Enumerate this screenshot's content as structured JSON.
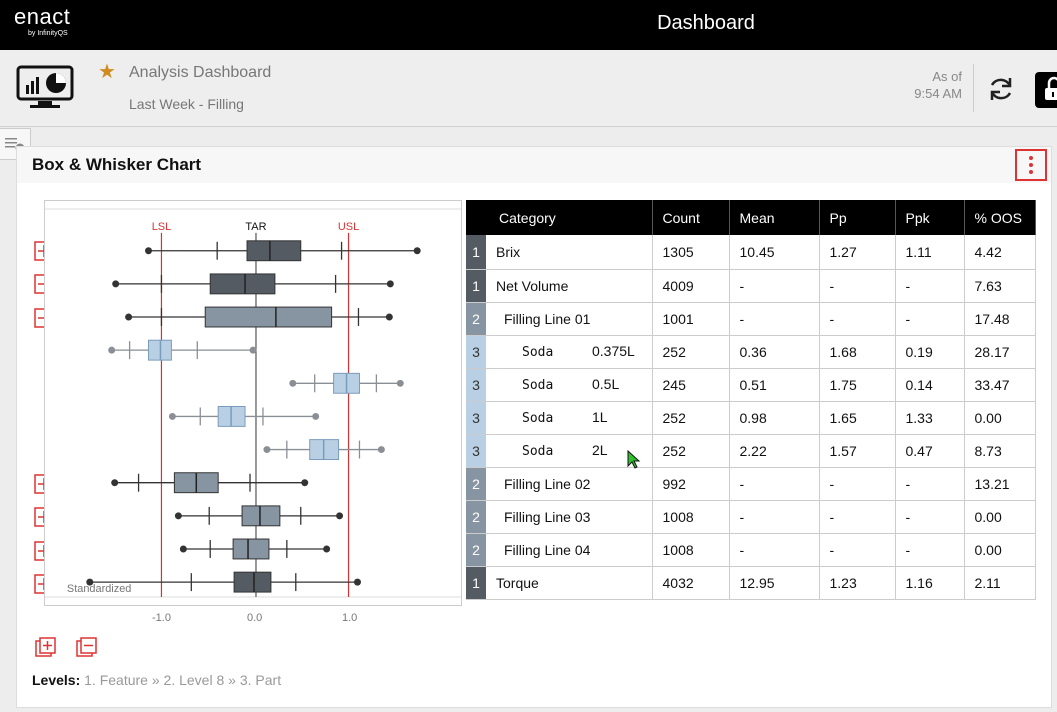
{
  "topbar": {
    "brand": "enact",
    "brand_sub": "by InfinityQS",
    "title": "Dashboard"
  },
  "header": {
    "title": "Analysis Dashboard",
    "subtitle": "Last Week - Filling",
    "as_of_label": "As of",
    "as_of_time": "9:54 AM"
  },
  "panel": {
    "title": "Box & Whisker Chart"
  },
  "chart": {
    "limit_labels": [
      "LSL",
      "TAR",
      "USL"
    ],
    "x_ticks": [
      "-1.0",
      "0.0",
      "1.0"
    ],
    "axis_note": "Standardized"
  },
  "table": {
    "columns": [
      "Category",
      "Count",
      "Mean",
      "Pp",
      "Ppk",
      "% OOS"
    ],
    "rows": [
      {
        "level": "1",
        "category": "Brix",
        "count": "1305",
        "mean": "10.45",
        "pp": "1.27",
        "ppk": "1.11",
        "oos": "4.42"
      },
      {
        "level": "1",
        "category": "Net Volume",
        "count": "4009",
        "mean": "-",
        "pp": "-",
        "ppk": "-",
        "oos": "7.63"
      },
      {
        "level": "2",
        "category": "Filling Line 01",
        "count": "1001",
        "mean": "-",
        "pp": "-",
        "ppk": "-",
        "oos": "17.48"
      },
      {
        "level": "3",
        "category": "Soda",
        "size": "0.375L",
        "count": "252",
        "mean": "0.36",
        "pp": "1.68",
        "ppk": "0.19",
        "oos": "28.17"
      },
      {
        "level": "3",
        "category": "Soda",
        "size": "0.5L",
        "count": "245",
        "mean": "0.51",
        "pp": "1.75",
        "ppk": "0.14",
        "oos": "33.47"
      },
      {
        "level": "3",
        "category": "Soda",
        "size": "1L",
        "count": "252",
        "mean": "0.98",
        "pp": "1.65",
        "ppk": "1.33",
        "oos": "0.00"
      },
      {
        "level": "3",
        "category": "Soda",
        "size": "2L",
        "count": "252",
        "mean": "2.22",
        "pp": "1.57",
        "ppk": "0.47",
        "oos": "8.73"
      },
      {
        "level": "2",
        "category": "Filling Line 02",
        "count": "992",
        "mean": "-",
        "pp": "-",
        "ppk": "-",
        "oos": "13.21"
      },
      {
        "level": "2",
        "category": "Filling Line 03",
        "count": "1008",
        "mean": "-",
        "pp": "-",
        "ppk": "-",
        "oos": "0.00"
      },
      {
        "level": "2",
        "category": "Filling Line 04",
        "count": "1008",
        "mean": "-",
        "pp": "-",
        "ppk": "-",
        "oos": "0.00"
      },
      {
        "level": "1",
        "category": "Torque",
        "count": "4032",
        "mean": "12.95",
        "pp": "1.23",
        "ppk": "1.16",
        "oos": "2.11"
      }
    ]
  },
  "levels": {
    "label": "Levels:",
    "items": [
      "1. Feature",
      "2. Level 8",
      "3. Part"
    ],
    "separator": "»"
  },
  "colors": {
    "accent_star": "#d08c1e",
    "limit_line": "#d33333",
    "level1": "#555b62",
    "level2": "#8794a2",
    "level3": "#b9cfe3"
  },
  "icons": [
    "dashboard-monitor-icon",
    "star-icon",
    "refresh-icon",
    "lock-icon",
    "collapse-panel-icon",
    "kebab-menu-icon",
    "expand-row-icon",
    "collapse-row-icon",
    "expand-all-icon",
    "collapse-all-icon",
    "cursor-icon"
  ]
}
